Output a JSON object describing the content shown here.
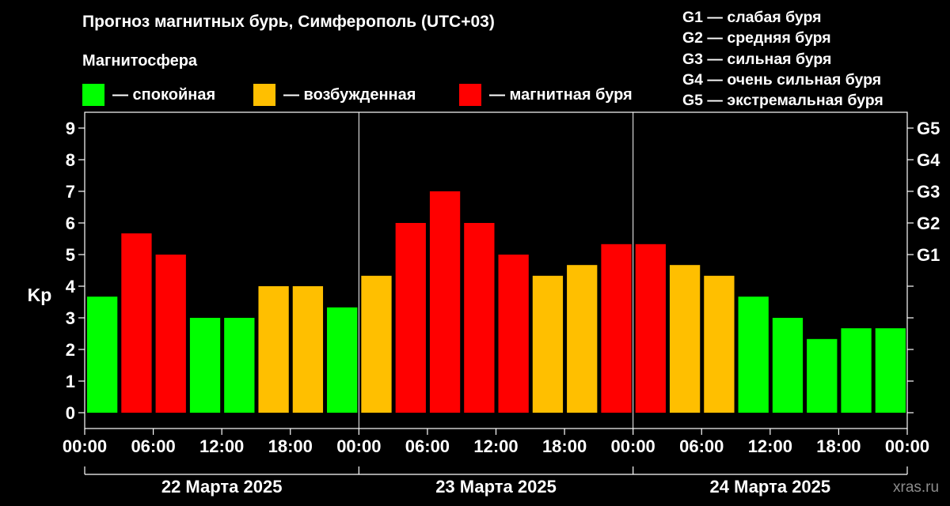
{
  "title": "Прогноз магнитных бурь, Симферополь (UTC+03)",
  "subtitle": "Магнитосфера",
  "legend": [
    {
      "label": "— спокойная",
      "color": "#00ff00"
    },
    {
      "label": "— возбужденная",
      "color": "#ffbf00"
    },
    {
      "label": "— магнитная буря",
      "color": "#ff0000"
    }
  ],
  "g_scale": [
    "G1 — слабая буря",
    "G2 — средняя буря",
    "G3 — сильная буря",
    "G4 — очень сильная буря",
    "G5 — экстремальная буря"
  ],
  "watermark": "xras.ru",
  "colors": {
    "quiet": "#00ff00",
    "unsettled": "#ffbf00",
    "storm": "#ff0000",
    "background": "#000000",
    "axis": "#ffffff"
  },
  "chart_data": {
    "type": "bar",
    "ylabel": "Kp",
    "ylim": [
      -0.5,
      9.5
    ],
    "yticks": [
      0,
      1,
      2,
      3,
      4,
      5,
      6,
      7,
      8,
      9
    ],
    "right_ticks": [
      {
        "value": 5,
        "label": "G1"
      },
      {
        "value": 6,
        "label": "G2"
      },
      {
        "value": 7,
        "label": "G3"
      },
      {
        "value": 8,
        "label": "G4"
      },
      {
        "value": 9,
        "label": "G5"
      }
    ],
    "x_tick_labels": [
      "00:00",
      "06:00",
      "12:00",
      "18:00",
      "00:00",
      "06:00",
      "12:00",
      "18:00",
      "00:00",
      "06:00",
      "12:00",
      "18:00",
      "00:00"
    ],
    "day_labels": [
      "22 Марта 2025",
      "23 Марта 2025",
      "24 Марта 2025"
    ],
    "grid": true,
    "values": [
      3.67,
      5.67,
      5.0,
      3.0,
      3.0,
      4.0,
      4.0,
      3.33,
      4.33,
      6.0,
      7.0,
      6.0,
      5.0,
      4.33,
      4.67,
      5.33,
      5.33,
      4.67,
      4.33,
      3.67,
      3.0,
      2.33,
      2.67,
      2.67
    ],
    "levels": [
      "quiet",
      "storm",
      "storm",
      "quiet",
      "quiet",
      "unsettled",
      "unsettled",
      "quiet",
      "unsettled",
      "storm",
      "storm",
      "storm",
      "storm",
      "unsettled",
      "unsettled",
      "storm",
      "storm",
      "unsettled",
      "unsettled",
      "quiet",
      "quiet",
      "quiet",
      "quiet",
      "quiet"
    ]
  }
}
